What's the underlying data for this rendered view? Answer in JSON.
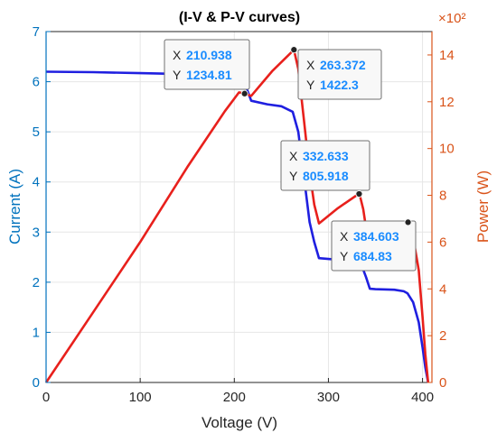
{
  "chart_data": {
    "type": "line",
    "title": "(I-V & P-V curves)",
    "xlabel": "Voltage (V)",
    "ylabel_left": "Current (A)",
    "ylabel_right": "Power (W)",
    "right_exponent": "×10²",
    "xlim": [
      0,
      410
    ],
    "ylim_left": [
      0,
      7
    ],
    "ylim_right": [
      0,
      15
    ],
    "x_ticks": [
      0,
      100,
      200,
      300,
      400
    ],
    "y_left_ticks": [
      0,
      1,
      2,
      3,
      4,
      5,
      6,
      7
    ],
    "y_right_ticks": [
      0,
      2,
      4,
      6,
      8,
      10,
      12,
      14
    ],
    "grid": true,
    "colors": {
      "current": "#1f1fe0",
      "power": "#e8201c",
      "left_axis": "#0072bd",
      "right_axis": "#d95319",
      "datatip_value": "#1a8cff"
    },
    "series": [
      {
        "axis": "left",
        "x": [
          0,
          50,
          100,
          150,
          190,
          205,
          212,
          218,
          235,
          250,
          262,
          268,
          274,
          280,
          285,
          290,
          310,
          330,
          335,
          340,
          344,
          350,
          370,
          380,
          384,
          390,
          396,
          400,
          403,
          406
        ],
        "y": [
          6.2,
          6.19,
          6.17,
          6.15,
          6.12,
          6.05,
          5.92,
          5.62,
          5.55,
          5.51,
          5.4,
          5.0,
          4.1,
          3.2,
          2.8,
          2.48,
          2.45,
          2.42,
          2.35,
          2.1,
          1.87,
          1.86,
          1.85,
          1.82,
          1.78,
          1.6,
          1.2,
          0.7,
          0.3,
          0
        ]
      },
      {
        "axis": "right",
        "x": [
          0,
          50,
          100,
          150,
          190,
          205,
          211,
          218,
          240,
          263.4,
          268,
          274,
          280,
          285,
          290,
          310,
          330,
          333,
          337,
          340,
          344,
          350,
          370,
          384.6,
          390,
          396,
          400,
          403,
          406
        ],
        "y": [
          0,
          3.0,
          6.0,
          9.2,
          11.6,
          12.4,
          12.35,
          12.25,
          13.3,
          14.22,
          13.4,
          11.2,
          9.0,
          7.6,
          6.8,
          7.45,
          8.0,
          8.06,
          7.4,
          6.6,
          6.35,
          6.5,
          6.75,
          6.85,
          6.2,
          4.8,
          2.8,
          1.2,
          0
        ]
      }
    ],
    "datatips": [
      {
        "xlabel": "X",
        "x": "210.938",
        "ylabel": "Y",
        "y": "1234.81",
        "point_x": 210.938,
        "point_y": 12.3481
      },
      {
        "xlabel": "X",
        "x": "263.372",
        "ylabel": "Y",
        "y": "1422.3",
        "point_x": 263.372,
        "point_y": 14.223
      },
      {
        "xlabel": "X",
        "x": "332.633",
        "ylabel": "Y",
        "y": "805.918",
        "point_x": 332.633,
        "point_y": 8.05918
      },
      {
        "xlabel": "X",
        "x": "384.603",
        "ylabel": "Y",
        "y": "684.83",
        "point_x": 384.603,
        "point_y": 6.8483
      }
    ]
  }
}
